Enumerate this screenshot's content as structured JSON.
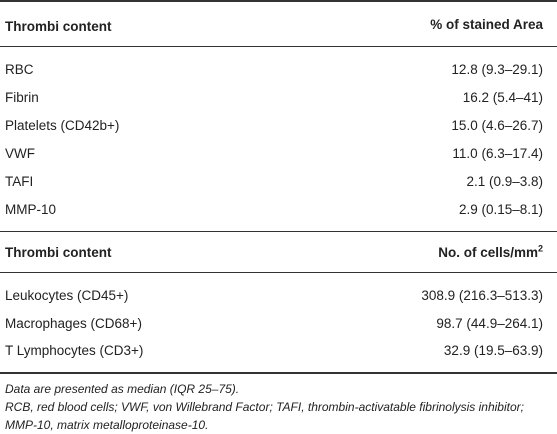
{
  "section1": {
    "header_left": "Thrombi content",
    "header_right": "% of stained Area",
    "rows": [
      {
        "label": "RBC",
        "value": "12.8 (9.3–29.1)"
      },
      {
        "label": "Fibrin",
        "value": "16.2 (5.4–41)"
      },
      {
        "label": "Platelets (CD42b+)",
        "value": "15.0 (4.6–26.7)"
      },
      {
        "label": "VWF",
        "value": "11.0 (6.3–17.4)"
      },
      {
        "label": "TAFI",
        "value": "2.1 (0.9–3.8)"
      },
      {
        "label": "MMP-10",
        "value": "2.9 (0.15–8.1)"
      }
    ]
  },
  "section2": {
    "header_left": "Thrombi content",
    "header_right_main": "No. of cells/mm",
    "header_right_sup": "2",
    "rows": [
      {
        "label": "Leukocytes (CD45+)",
        "value": "308.9 (216.3–513.3)"
      },
      {
        "label": "Macrophages (CD68+)",
        "value": "98.7 (44.9–264.1)"
      },
      {
        "label": "T Lymphocytes (CD3+)",
        "value": "32.9 (19.5–63.9)"
      }
    ]
  },
  "footnotes": {
    "line1": "Data are presented as median (IQR 25–75).",
    "line2": "RCB, red blood cells; VWF, von Willebrand Factor; TAFI, thrombin-activatable fibrinolysis inhibitor; MMP-10, matrix metalloproteinase-10."
  }
}
